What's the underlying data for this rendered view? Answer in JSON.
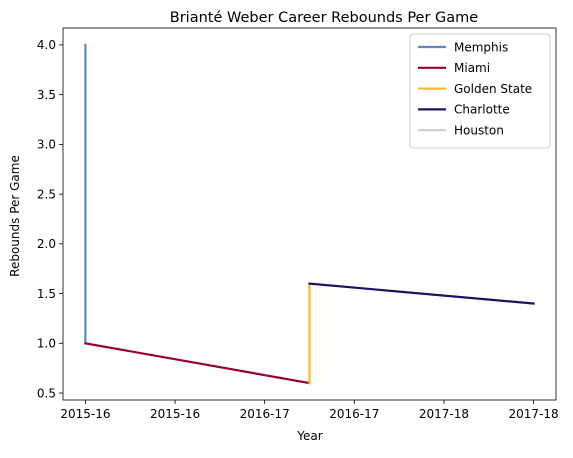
{
  "chart_data": {
    "type": "line",
    "title": "Brianté Weber Career Rebounds Per Game",
    "xlabel": "Year",
    "ylabel": "Rebounds Per Game",
    "x_tick_labels": [
      "2015-16",
      "2015-16",
      "2016-17",
      "2016-17",
      "2017-18",
      "2017-18"
    ],
    "y_ticks": [
      "0.5",
      "1.0",
      "1.5",
      "2.0",
      "2.5",
      "3.0",
      "3.5",
      "4.0"
    ],
    "ylim": [
      0.43,
      4.17
    ],
    "xlim": [
      -0.1,
      2.1
    ],
    "legend_position": "top-right",
    "series": [
      {
        "name": "Memphis",
        "color": "#5d88c0",
        "points": [
          [
            0,
            4.0
          ],
          [
            0,
            1.0
          ]
        ]
      },
      {
        "name": "Miami",
        "color": "#98002e",
        "points": [
          [
            0,
            1.0
          ],
          [
            1,
            0.6
          ]
        ]
      },
      {
        "name": "Golden State",
        "color": "#fdb927",
        "points": [
          [
            1,
            0.6
          ],
          [
            1,
            1.6
          ]
        ]
      },
      {
        "name": "Charlotte",
        "color": "#1d1160",
        "points": [
          [
            1,
            1.6
          ],
          [
            2,
            1.4
          ]
        ]
      },
      {
        "name": "Houston",
        "color": "#c4ced4",
        "points": []
      }
    ]
  }
}
